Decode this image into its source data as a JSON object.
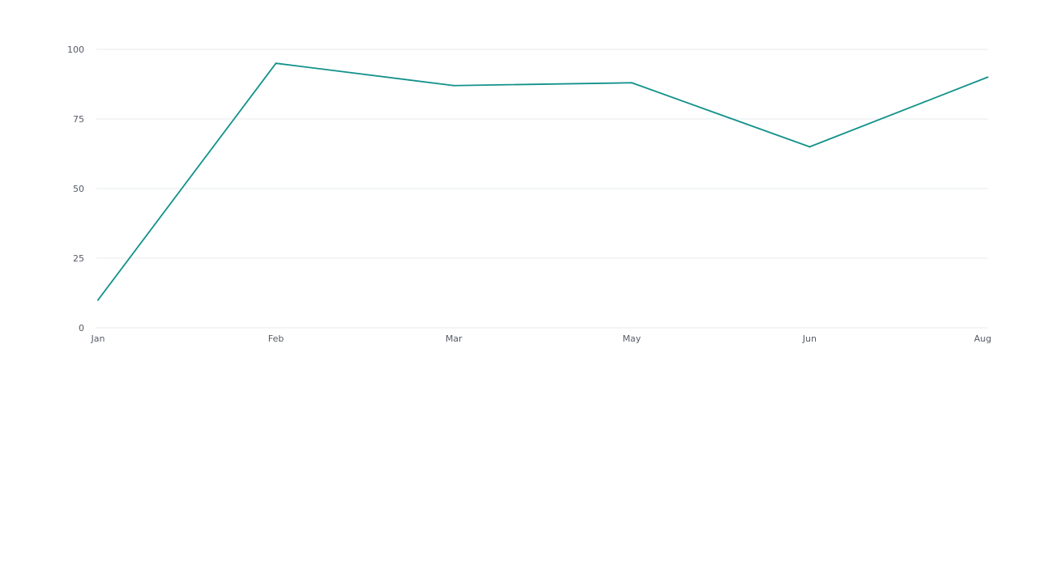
{
  "chart_data": {
    "type": "line",
    "title": "",
    "xlabel": "",
    "ylabel": "",
    "categories": [
      "Jan",
      "Feb",
      "Mar",
      "May",
      "Jun",
      "Aug"
    ],
    "series": [
      {
        "values": [
          10,
          95,
          87,
          88,
          65,
          90
        ],
        "color": "#12928a"
      }
    ],
    "ylim": [
      0,
      100
    ],
    "yticks": [
      0,
      25,
      50,
      75,
      100
    ],
    "grid": true,
    "legend": "none"
  }
}
